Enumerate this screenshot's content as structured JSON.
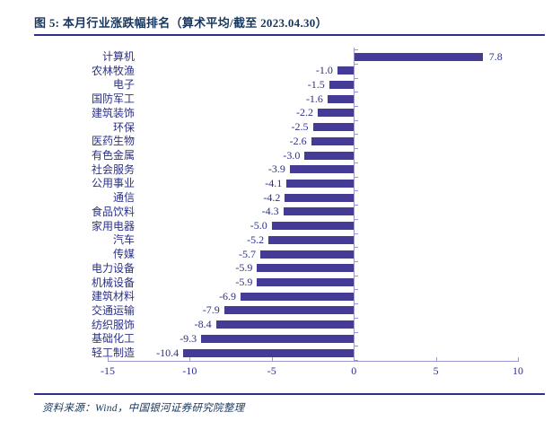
{
  "title": "图 5: 本月行业涨跌幅排名（算术平均/截至 2023.04.30）",
  "footer": {
    "source_label": "资料来源：Wind，中国银河证券研究院整理"
  },
  "colors": {
    "bar": "#433B95",
    "label_text": "#2B3087",
    "title_text": "#17375E",
    "rule": "#302E8C",
    "axis_line": "#9C97D0",
    "background": "#FFFFFF"
  },
  "chart_data": {
    "type": "bar",
    "orientation": "horizontal",
    "title": "本月行业涨跌幅排名（算术平均/截至 2023.04.30）",
    "categories": [
      "计算机",
      "农林牧渔",
      "电子",
      "国防军工",
      "建筑装饰",
      "环保",
      "医药生物",
      "有色金属",
      "社会服务",
      "公用事业",
      "通信",
      "食品饮料",
      "家用电器",
      "汽车",
      "传媒",
      "电力设备",
      "机械设备",
      "建筑材料",
      "交通运输",
      "纺织服饰",
      "基础化工",
      "轻工制造"
    ],
    "values": [
      7.8,
      -1.0,
      -1.5,
      -1.6,
      -2.2,
      -2.5,
      -2.6,
      -3.0,
      -3.9,
      -4.1,
      -4.2,
      -4.3,
      -5.0,
      -5.2,
      -5.7,
      -5.9,
      -5.9,
      -6.9,
      -7.9,
      -8.4,
      -9.3,
      -10.4
    ],
    "value_labels": [
      "7.8",
      "-1.0",
      "-1.5",
      "-1.6",
      "-2.2",
      "-2.5",
      "-2.6",
      "-3.0",
      "-3.9",
      "-4.1",
      "-4.2",
      "-4.3",
      "-5.0",
      "-5.2",
      "-5.7",
      "-5.9",
      "-5.9",
      "-6.9",
      "-7.9",
      "-8.4",
      "-9.3",
      "-10.4"
    ],
    "xlim": [
      -15,
      10
    ],
    "x_ticks": [
      -15,
      -10,
      -5,
      0,
      5,
      10
    ],
    "x_tick_labels": [
      "-15",
      "-10",
      "-5",
      "0",
      "5",
      "10"
    ],
    "grid": false,
    "legend": false
  }
}
